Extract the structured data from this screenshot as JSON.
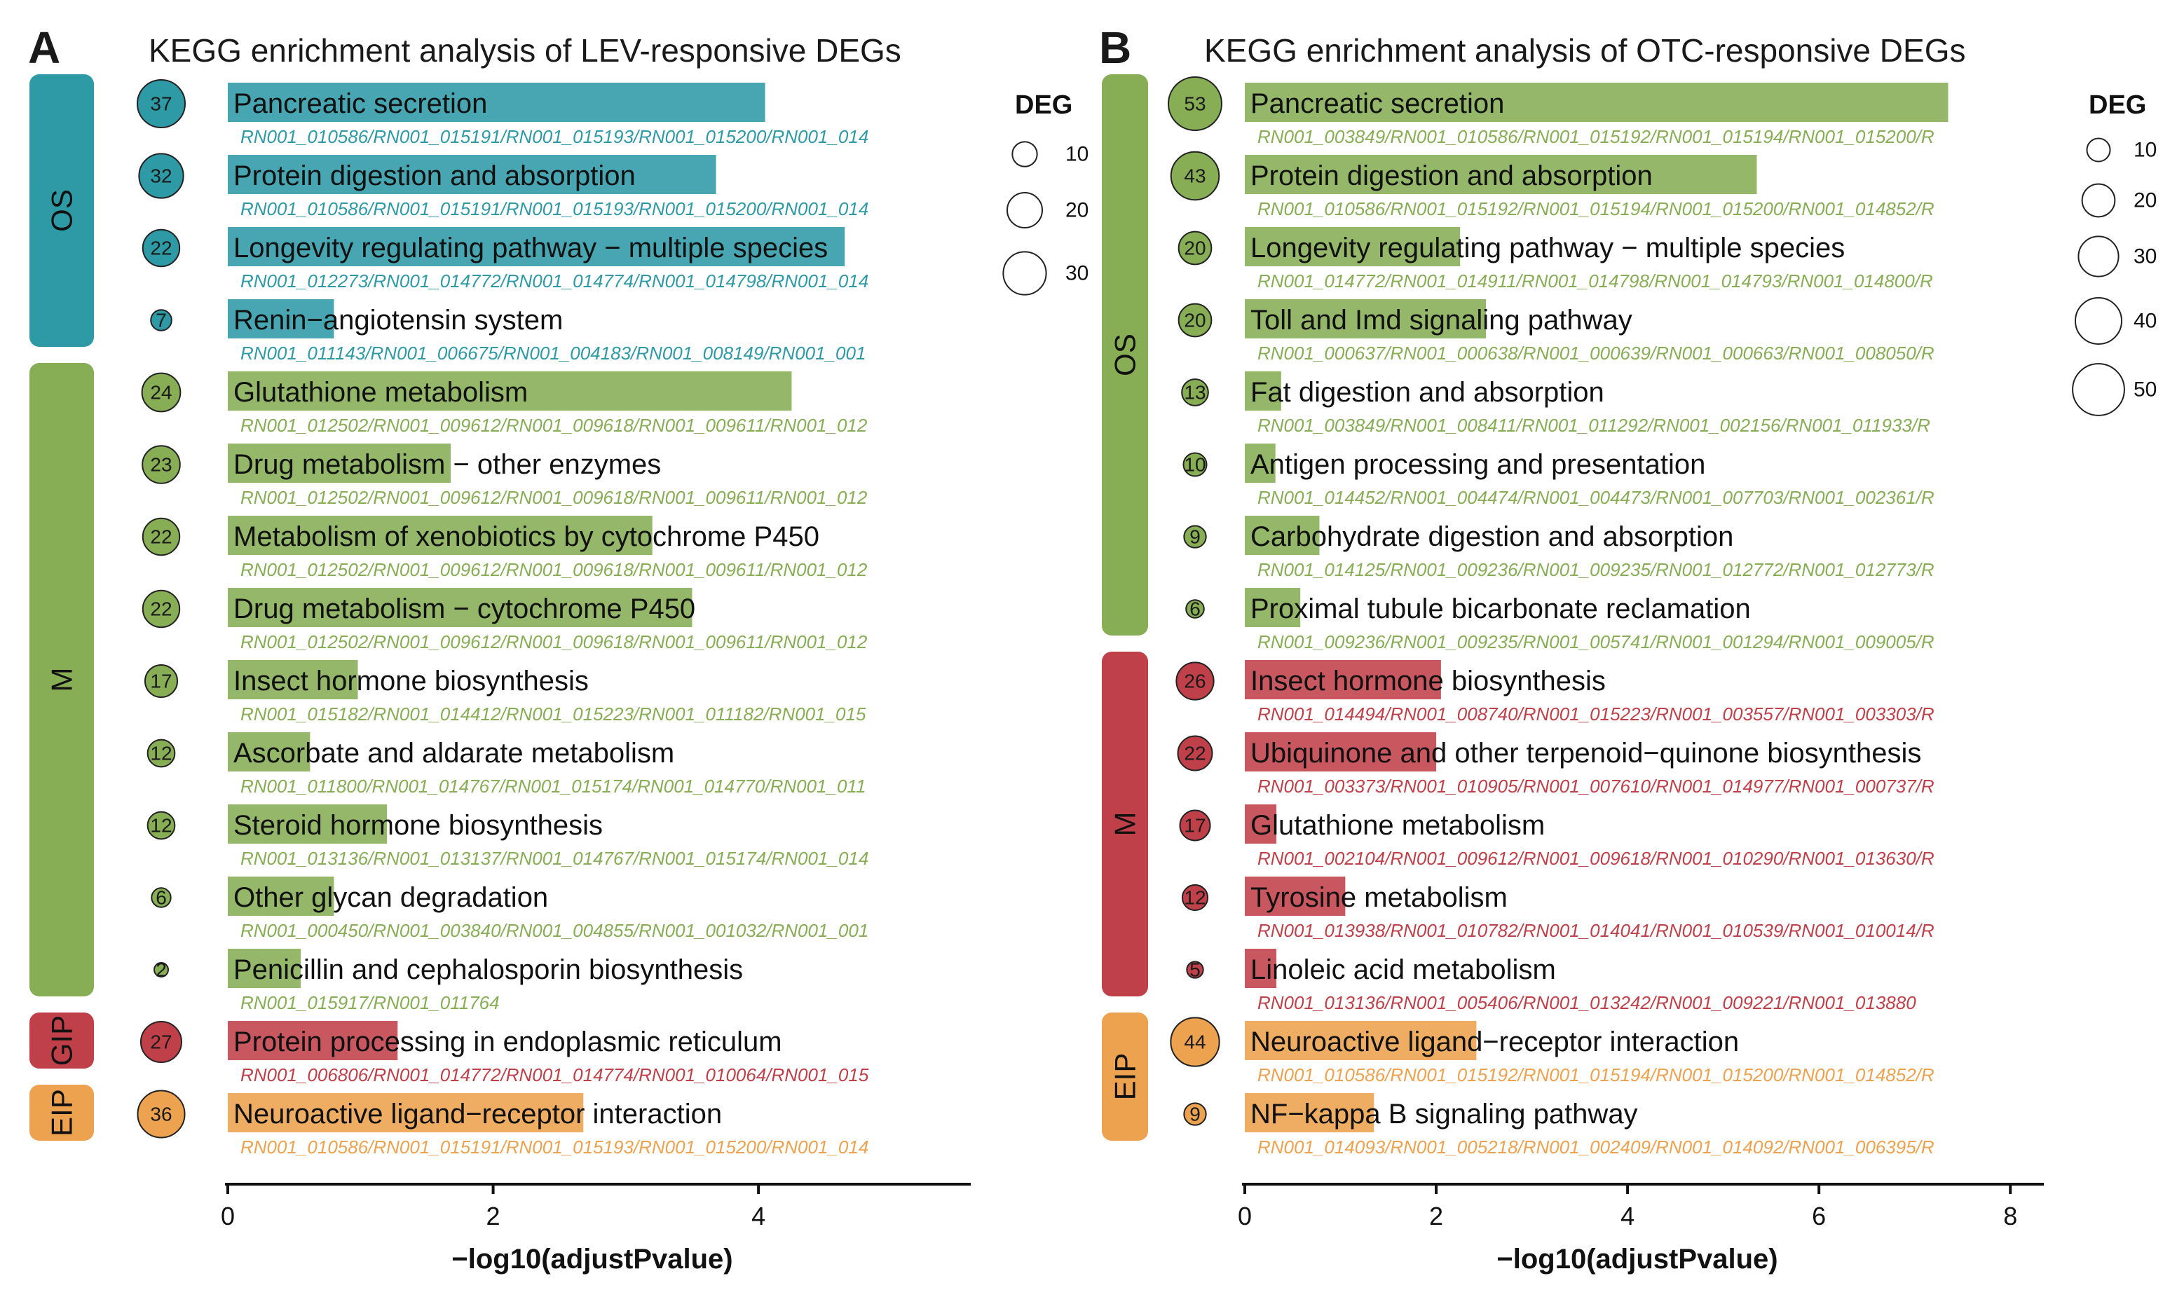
{
  "colors": {
    "OS": "#2e9aa6",
    "M_green": "#87ad55",
    "GIP": "#c0404a",
    "EIP": "#eca24e",
    "M_red": "#c0404a"
  },
  "chart_data": [
    {
      "panel": "A",
      "type": "bar",
      "title": "KEGG enrichment analysis of LEV-responsive DEGs",
      "xlabel": "−log10(adjustPvalue)",
      "xlim": [
        0,
        5.6
      ],
      "xticks": [
        0,
        2,
        4
      ],
      "legend": {
        "title": "DEG",
        "values": [
          10,
          20,
          30
        ],
        "max": 37
      },
      "categories": [
        {
          "label": "OS",
          "color_key": "OS",
          "start": 0,
          "end": 3
        },
        {
          "label": "M",
          "color_key": "M_green",
          "start": 4,
          "end": 12
        },
        {
          "label": "GIP",
          "color_key": "GIP",
          "start": 13,
          "end": 13
        },
        {
          "label": "EIP",
          "color_key": "EIP",
          "start": 14,
          "end": 14
        }
      ],
      "terms": [
        {
          "name": "Pancreatic secretion",
          "value": 4.05,
          "count": 37,
          "genes": "RN001_010586/RN001_015191/RN001_015193/RN001_015200/RN001_014",
          "color_key": "OS"
        },
        {
          "name": "Protein digestion and absorption",
          "value": 3.68,
          "count": 32,
          "genes": "RN001_010586/RN001_015191/RN001_015193/RN001_015200/RN001_014",
          "color_key": "OS"
        },
        {
          "name": "Longevity regulating pathway − multiple species",
          "value": 4.65,
          "count": 22,
          "genes": "RN001_012273/RN001_014772/RN001_014774/RN001_014798/RN001_014",
          "color_key": "OS"
        },
        {
          "name": "Renin−angiotensin system",
          "value": 0.8,
          "count": 7,
          "genes": "RN001_011143/RN001_006675/RN001_004183/RN001_008149/RN001_001",
          "color_key": "OS"
        },
        {
          "name": "Glutathione metabolism",
          "value": 4.25,
          "count": 24,
          "genes": "RN001_012502/RN001_009612/RN001_009618/RN001_009611/RN001_012",
          "color_key": "M_green"
        },
        {
          "name": "Drug metabolism − other enzymes",
          "value": 1.68,
          "count": 23,
          "genes": "RN001_012502/RN001_009612/RN001_009618/RN001_009611/RN001_012",
          "color_key": "M_green"
        },
        {
          "name": "Metabolism of xenobiotics by cytochrome P450",
          "value": 3.2,
          "count": 22,
          "genes": "RN001_012502/RN001_009612/RN001_009618/RN001_009611/RN001_012",
          "color_key": "M_green"
        },
        {
          "name": "Drug metabolism − cytochrome P450",
          "value": 3.5,
          "count": 22,
          "genes": "RN001_012502/RN001_009612/RN001_009618/RN001_009611/RN001_012",
          "color_key": "M_green"
        },
        {
          "name": "Insect hormone biosynthesis",
          "value": 0.98,
          "count": 17,
          "genes": "RN001_015182/RN001_014412/RN001_015223/RN001_011182/RN001_015",
          "color_key": "M_green"
        },
        {
          "name": "Ascorbate and aldarate metabolism",
          "value": 0.62,
          "count": 12,
          "genes": "RN001_011800/RN001_014767/RN001_015174/RN001_014770/RN001_011",
          "color_key": "M_green"
        },
        {
          "name": "Steroid hormone biosynthesis",
          "value": 1.2,
          "count": 12,
          "genes": "RN001_013136/RN001_013137/RN001_014767/RN001_015174/RN001_014",
          "color_key": "M_green"
        },
        {
          "name": "Other glycan degradation",
          "value": 0.8,
          "count": 6,
          "genes": "RN001_000450/RN001_003840/RN001_004855/RN001_001032/RN001_001",
          "color_key": "M_green"
        },
        {
          "name": "Penicillin and cephalosporin biosynthesis",
          "value": 0.55,
          "count": 2,
          "genes": "RN001_015917/RN001_011764",
          "color_key": "M_green"
        },
        {
          "name": "Protein processing in endoplasmic reticulum",
          "value": 1.28,
          "count": 27,
          "genes": "RN001_006806/RN001_014772/RN001_014774/RN001_010064/RN001_015",
          "color_key": "GIP"
        },
        {
          "name": "Neuroactive ligand−receptor interaction",
          "value": 2.68,
          "count": 36,
          "genes": "RN001_010586/RN001_015191/RN001_015193/RN001_015200/RN001_014",
          "color_key": "EIP"
        }
      ]
    },
    {
      "panel": "B",
      "type": "bar",
      "title": "KEGG enrichment analysis of OTC-responsive DEGs",
      "xlabel": "−log10(adjustPvalue)",
      "xlim": [
        0,
        8.35
      ],
      "xticks": [
        0,
        2,
        4,
        6,
        8
      ],
      "legend": {
        "title": "DEG",
        "values": [
          10,
          20,
          30,
          40,
          50
        ],
        "max": 53
      },
      "categories": [
        {
          "label": "OS",
          "color_key": "M_green",
          "start": 0,
          "end": 7
        },
        {
          "label": "M",
          "color_key": "M_red",
          "start": 8,
          "end": 12
        },
        {
          "label": "EIP",
          "color_key": "EIP",
          "start": 13,
          "end": 14
        }
      ],
      "terms": [
        {
          "name": "Pancreatic secretion",
          "value": 7.35,
          "count": 53,
          "genes": "RN001_003849/RN001_010586/RN001_015192/RN001_015194/RN001_015200/R",
          "color_key": "M_green"
        },
        {
          "name": "Protein digestion and absorption",
          "value": 5.35,
          "count": 43,
          "genes": "RN001_010586/RN001_015192/RN001_015194/RN001_015200/RN001_014852/R",
          "color_key": "M_green"
        },
        {
          "name": "Longevity regulating pathway − multiple species",
          "value": 2.25,
          "count": 20,
          "genes": "RN001_014772/RN001_014911/RN001_014798/RN001_014793/RN001_014800/R",
          "color_key": "M_green"
        },
        {
          "name": "Toll and Imd signaling pathway",
          "value": 2.52,
          "count": 20,
          "genes": "RN001_000637/RN001_000638/RN001_000639/RN001_000663/RN001_008050/R",
          "color_key": "M_green"
        },
        {
          "name": "Fat digestion and absorption",
          "value": 0.38,
          "count": 13,
          "genes": "RN001_003849/RN001_008411/RN001_011292/RN001_002156/RN001_011933/R",
          "color_key": "M_green"
        },
        {
          "name": "Antigen processing and presentation",
          "value": 0.32,
          "count": 10,
          "genes": "RN001_014452/RN001_004474/RN001_004473/RN001_007703/RN001_002361/R",
          "color_key": "M_green"
        },
        {
          "name": "Carbohydrate digestion and absorption",
          "value": 0.78,
          "count": 9,
          "genes": "RN001_014125/RN001_009236/RN001_009235/RN001_012772/RN001_012773/R",
          "color_key": "M_green"
        },
        {
          "name": "Proximal tubule bicarbonate reclamation",
          "value": 0.58,
          "count": 6,
          "genes": "RN001_009236/RN001_009235/RN001_005741/RN001_001294/RN001_009005/R",
          "color_key": "M_green"
        },
        {
          "name": "Insect hormone biosynthesis",
          "value": 2.05,
          "count": 26,
          "genes": "RN001_014494/RN001_008740/RN001_015223/RN001_003557/RN001_003303/R",
          "color_key": "M_red"
        },
        {
          "name": "Ubiquinone and other terpenoid−quinone biosynthesis",
          "value": 2.0,
          "count": 22,
          "genes": "RN001_003373/RN001_010905/RN001_007610/RN001_014977/RN001_000737/R",
          "color_key": "M_red"
        },
        {
          "name": "Glutathione metabolism",
          "value": 0.33,
          "count": 17,
          "genes": "RN001_002104/RN001_009612/RN001_009618/RN001_010290/RN001_013630/R",
          "color_key": "M_red"
        },
        {
          "name": "Tyrosine metabolism",
          "value": 1.05,
          "count": 12,
          "genes": "RN001_013938/RN001_010782/RN001_014041/RN001_010539/RN001_010014/R",
          "color_key": "M_red"
        },
        {
          "name": "Linoleic acid metabolism",
          "value": 0.33,
          "count": 5,
          "genes": "RN001_013136/RN001_005406/RN001_013242/RN001_009221/RN001_013880",
          "color_key": "M_red"
        },
        {
          "name": "Neuroactive ligand−receptor interaction",
          "value": 2.42,
          "count": 44,
          "genes": "RN001_010586/RN001_015192/RN001_015194/RN001_015200/RN001_014852/R",
          "color_key": "EIP"
        },
        {
          "name": "NF−kappa B signaling pathway",
          "value": 1.35,
          "count": 9,
          "genes": "RN001_014093/RN001_005218/RN001_002409/RN001_014092/RN001_006395/R",
          "color_key": "EIP"
        }
      ]
    }
  ]
}
